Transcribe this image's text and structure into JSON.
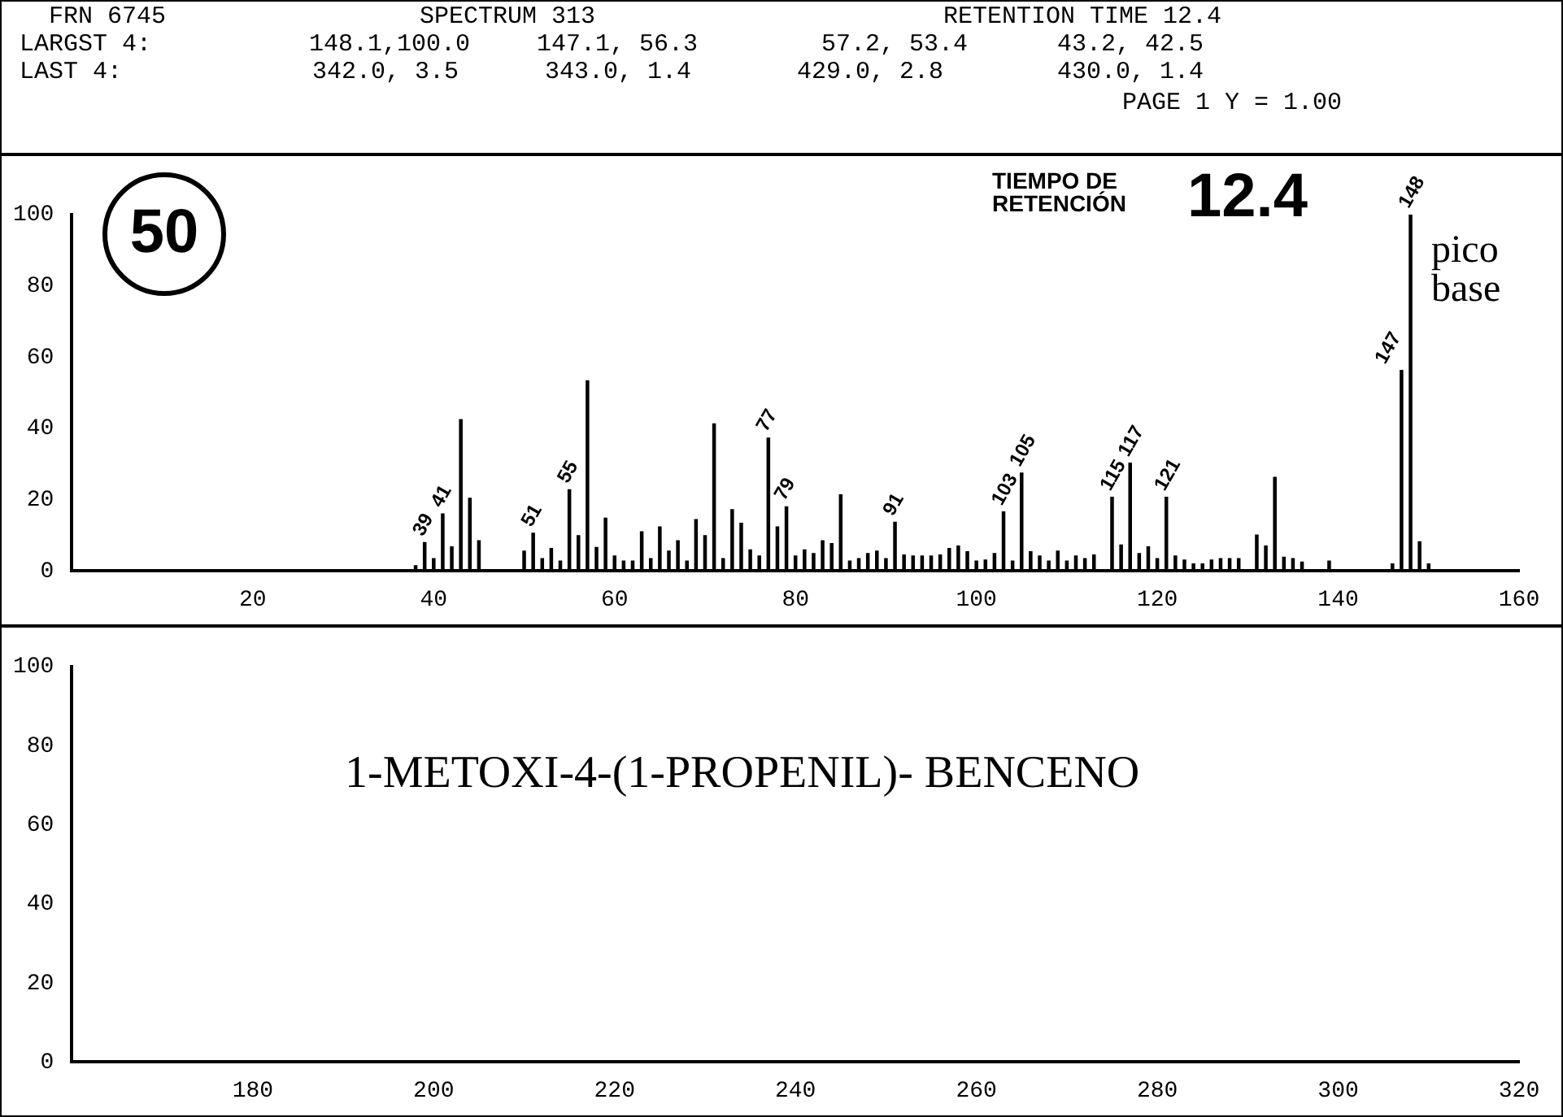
{
  "chart_data": [
    {
      "type": "bar",
      "color": "#000000",
      "x": [
        38,
        39,
        40,
        41,
        42,
        43,
        44,
        45,
        50,
        51,
        52,
        53,
        54,
        55,
        56,
        57,
        58,
        59,
        60,
        61,
        62,
        63,
        64,
        65,
        66,
        67,
        68,
        69,
        70,
        71,
        72,
        73,
        74,
        75,
        76,
        77,
        78,
        79,
        80,
        81,
        82,
        83,
        84,
        85,
        86,
        87,
        88,
        89,
        90,
        91,
        92,
        93,
        94,
        95,
        96,
        97,
        98,
        99,
        100,
        101,
        102,
        103,
        104,
        105,
        106,
        107,
        108,
        109,
        110,
        111,
        112,
        113,
        115,
        116,
        117,
        118,
        119,
        120,
        121,
        122,
        123,
        124,
        125,
        126,
        127,
        128,
        129,
        131,
        132,
        133,
        134,
        135,
        136,
        139,
        146,
        147,
        148,
        149,
        150
      ],
      "values": [
        1.5,
        8,
        3.5,
        16,
        6.8,
        42.5,
        20.4,
        8.5,
        5.6,
        10.6,
        3.5,
        6.3,
        2.8,
        22.8,
        9.9,
        53.4,
        6.6,
        14.8,
        4.2,
        2.8,
        2.8,
        11,
        3.5,
        12.4,
        5.6,
        8.5,
        2.8,
        14.4,
        9.9,
        41.3,
        3.5,
        17.2,
        13.4,
        5.9,
        4.2,
        37.3,
        12.4,
        18,
        4.2,
        5.9,
        4.9,
        8.5,
        7.7,
        21.4,
        2.8,
        3.5,
        4.9,
        5.6,
        3.5,
        13.7,
        4.5,
        4.2,
        4.2,
        4.2,
        4.5,
        6.3,
        7,
        5.4,
        2.8,
        3.1,
        4.9,
        16.6,
        2.8,
        27.5,
        5.4,
        4.2,
        2.8,
        5.6,
        2.8,
        4.2,
        3.5,
        4.5,
        20.7,
        7.3,
        30.3,
        4.9,
        6.8,
        3.5,
        20.7,
        4.2,
        3.1,
        2,
        2,
        3.1,
        3.5,
        3.5,
        3.5,
        10.1,
        7,
        26.3,
        3.9,
        3.5,
        2.5,
        2.8,
        2,
        56.3,
        100,
        8.2,
        2
      ],
      "xlim": [
        0,
        160
      ],
      "xticks": [
        20,
        40,
        60,
        80,
        100,
        120,
        140,
        160
      ],
      "ylim": [
        0,
        100
      ],
      "yticks": [
        0,
        20,
        40,
        60,
        80,
        100
      ],
      "grid": false,
      "legend": false,
      "annotations": [
        "FRN 6745",
        "SPECTRUM 313",
        "RETENTION TIME 12.4",
        "LARGST 4:",
        "148.1,100.0",
        "147.1, 56.3",
        "57.2, 53.4",
        "43.2, 42.5",
        "LAST 4:",
        "342.0, 3.5",
        "343.0, 1.4",
        "429.0, 2.8",
        "430.0, 1.4",
        "PAGE 1 Y = 1.00",
        "50",
        "TIEMPO DE RETENCIÓN",
        "12.4",
        "pico base",
        {
          "text": "39",
          "x": 39,
          "y": 8
        },
        {
          "text": "41",
          "x": 41,
          "y": 16
        },
        {
          "text": "51",
          "x": 51,
          "y": 10.6
        },
        {
          "text": "55",
          "x": 55,
          "y": 22.8
        },
        {
          "text": "77",
          "x": 77,
          "y": 37.3
        },
        {
          "text": "79",
          "x": 79,
          "y": 18
        },
        {
          "text": "91",
          "x": 91,
          "y": 13.7
        },
        {
          "text": "103",
          "x": 103,
          "y": 16.6
        },
        {
          "text": "105",
          "x": 105,
          "y": 27.5
        },
        {
          "text": "115",
          "x": 115,
          "y": 20.7
        },
        {
          "text": "117",
          "x": 117,
          "y": 30.3
        },
        {
          "text": "121",
          "x": 121,
          "y": 20.7
        },
        {
          "text": "147",
          "x": 147,
          "y": 56.3
        },
        {
          "text": "148",
          "x": 148,
          "y": 100
        }
      ]
    },
    {
      "type": "bar",
      "color": "#000000",
      "xlim": [
        160,
        320
      ],
      "xticks": [
        180,
        200,
        220,
        240,
        260,
        280,
        300,
        320
      ],
      "ylim": [
        0,
        100
      ],
      "yticks": [
        0,
        20,
        40,
        60,
        80,
        100
      ],
      "grid": false,
      "legend": false,
      "annotations": [
        "1-METOXI-4-(1-PROPENIL)- BENCENO"
      ]
    }
  ]
}
